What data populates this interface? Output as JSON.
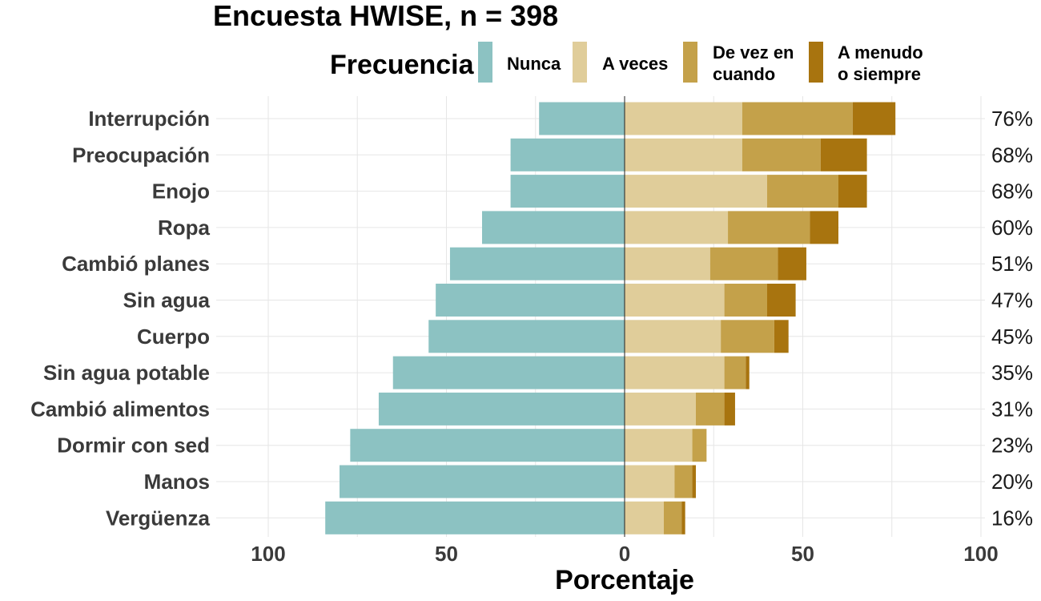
{
  "chart_data": {
    "type": "bar",
    "orientation": "horizontal-diverging",
    "title": "Encuesta HWISE, n = 398",
    "xlabel": "Porcentaje",
    "ylabel": "",
    "xlim": [
      -100,
      100
    ],
    "x_ticks": [
      -100,
      -50,
      0,
      50,
      100
    ],
    "x_tick_labels": [
      "100",
      "50",
      "0",
      "50",
      "100"
    ],
    "grid": true,
    "legend": {
      "title": "Frecuencia",
      "placement": "top",
      "entries": [
        {
          "label": [
            "Nunca"
          ],
          "color": "#8cc2c2"
        },
        {
          "label": [
            "A veces"
          ],
          "color": "#e0cd9a"
        },
        {
          "label": [
            "De vez en",
            "cuando"
          ],
          "color": "#c4a14a"
        },
        {
          "label": [
            "A menudo",
            "o siempre"
          ],
          "color": "#a8740f"
        }
      ]
    },
    "categories": [
      "Interrupción",
      "Preocupación",
      "Enojo",
      "Ropa",
      "Cambió planes",
      "Sin agua",
      "Cuerpo",
      "Sin agua potable",
      "Cambió alimentos",
      "Dormir con sed",
      "Manos",
      "Vergüenza"
    ],
    "series": [
      {
        "name": "Nunca",
        "color": "#8cc2c2",
        "direction": "left",
        "values": [
          24,
          32,
          32,
          40,
          49,
          53,
          55,
          65,
          69,
          77,
          80,
          84
        ]
      },
      {
        "name": "A veces",
        "color": "#e0cd9a",
        "direction": "right",
        "values": [
          33,
          33,
          40,
          29,
          24,
          28,
          27,
          28,
          20,
          19,
          14,
          11
        ]
      },
      {
        "name": "De vez en cuando",
        "color": "#c4a14a",
        "direction": "right",
        "values": [
          31,
          22,
          20,
          23,
          19,
          12,
          15,
          6,
          8,
          4,
          5,
          5
        ]
      },
      {
        "name": "A menudo o siempre",
        "color": "#a8740f",
        "direction": "right",
        "values": [
          12,
          13,
          8,
          8,
          8,
          8,
          4,
          1,
          3,
          0,
          1,
          1
        ]
      }
    ],
    "totals": [
      "76%",
      "68%",
      "68%",
      "60%",
      "51%",
      "47%",
      "45%",
      "35%",
      "31%",
      "23%",
      "20%",
      "16%"
    ]
  }
}
